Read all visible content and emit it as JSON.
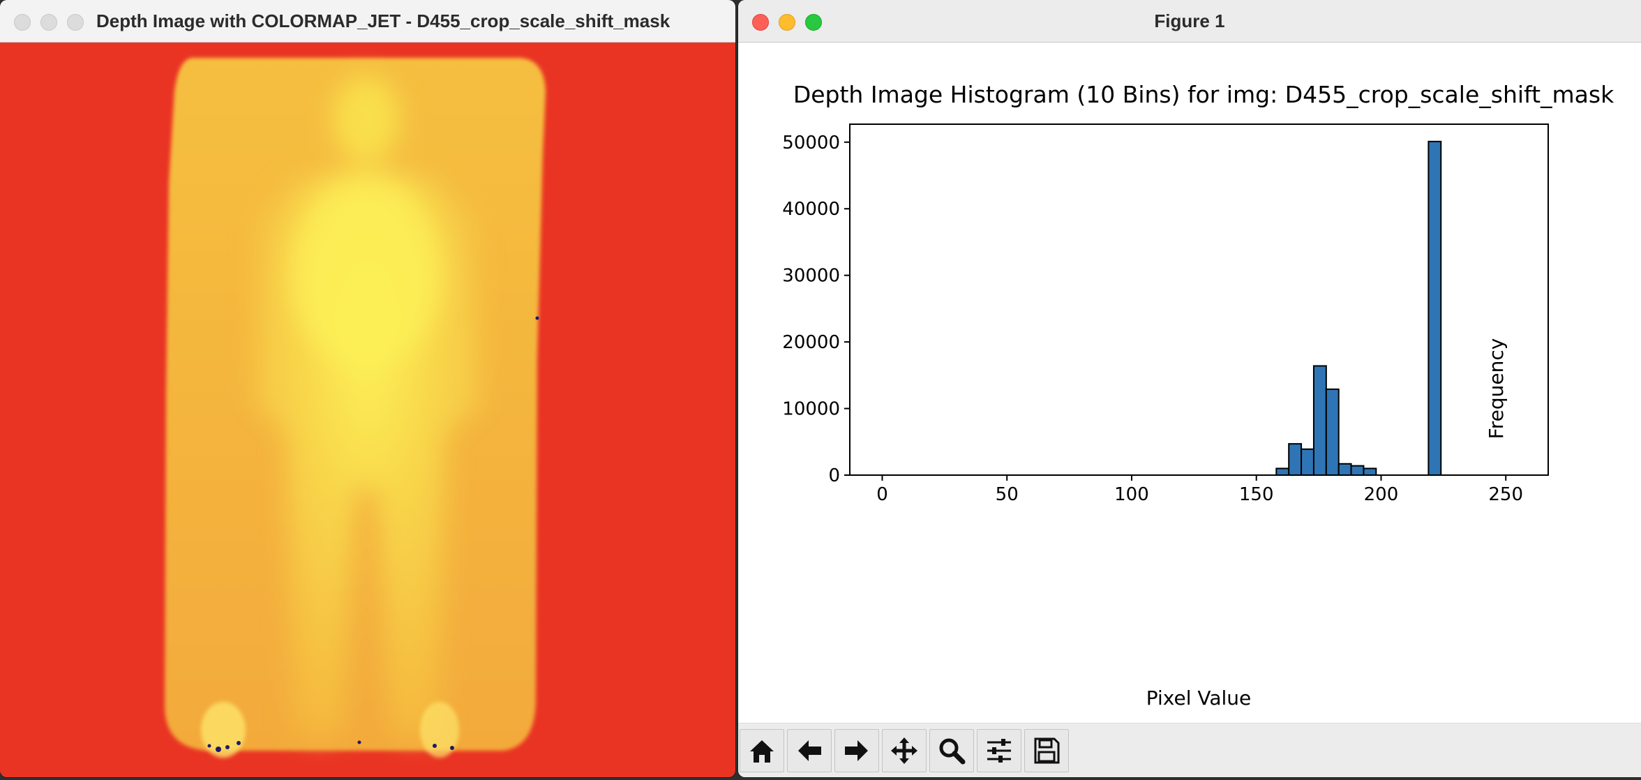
{
  "left_window": {
    "title": "Depth Image with COLORMAP_JET - D455_crop_scale_shift_mask"
  },
  "right_window": {
    "title": "Figure 1",
    "toolbar": [
      {
        "name": "home-button",
        "icon": "home-icon"
      },
      {
        "name": "back-button",
        "icon": "arrow-left-icon"
      },
      {
        "name": "forward-button",
        "icon": "arrow-right-icon"
      },
      {
        "name": "pan-button",
        "icon": "move-icon"
      },
      {
        "name": "zoom-button",
        "icon": "magnifier-icon"
      },
      {
        "name": "configure-subplots-button",
        "icon": "sliders-icon"
      },
      {
        "name": "save-button",
        "icon": "floppy-disk-icon"
      }
    ]
  },
  "colors": {
    "bar_fill": "#2f75b5",
    "bar_edge": "#000000",
    "jet_red": "#e93424",
    "jet_orange": "#f4b53e",
    "jet_yellow": "#fcf056"
  },
  "chart_data": {
    "type": "bar",
    "title": "Depth Image Histogram (10 Bins) for img: D455_crop_scale_shift_mask",
    "xlabel": "Pixel Value",
    "ylabel": "Frequency",
    "xlim": [
      -13,
      267
    ],
    "ylim": [
      0,
      52700
    ],
    "xticks": [
      0,
      50,
      100,
      150,
      200,
      250
    ],
    "yticks": [
      0,
      10000,
      20000,
      30000,
      40000,
      50000
    ],
    "bin_width": 5,
    "bins": [
      {
        "x0": 158,
        "x1": 163,
        "value": 1000
      },
      {
        "x0": 163,
        "x1": 168,
        "value": 4700
      },
      {
        "x0": 168,
        "x1": 173,
        "value": 3900
      },
      {
        "x0": 173,
        "x1": 178,
        "value": 16400
      },
      {
        "x0": 178,
        "x1": 183,
        "value": 12900
      },
      {
        "x0": 183,
        "x1": 188,
        "value": 1700
      },
      {
        "x0": 188,
        "x1": 193,
        "value": 1400
      },
      {
        "x0": 193,
        "x1": 198,
        "value": 1000
      },
      {
        "x0": 219,
        "x1": 224,
        "value": 50100
      }
    ]
  }
}
